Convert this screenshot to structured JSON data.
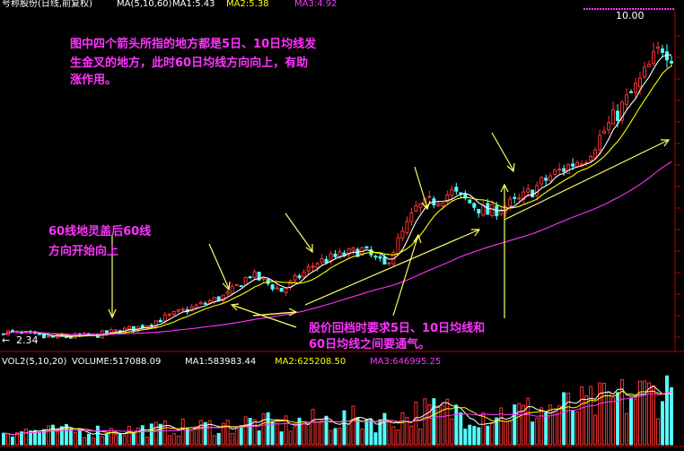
{
  "header": {
    "title": "号称股份(日线,前复权)",
    "ma_label": "MA(5,10,60)",
    "ma1_label": "MA1:5.43",
    "ma2_label": "MA2:5.38",
    "ma3_label": "MA3:4.92"
  },
  "colors": {
    "background": "#000000",
    "up_candle": "#ff3232",
    "down_candle": "#54ffff",
    "ma5": "#ffffff",
    "ma10": "#ffff00",
    "ma60": "#ff33ff",
    "annotation_text": "#ff33ff",
    "arrow": "#ffff66",
    "axis_line": "#b40000",
    "volume_info": "#ffffff"
  },
  "annotations": {
    "top_note_line1": "图中四个箭头所指的地方都是5日、10日均线发",
    "top_note_line2": "生金叉的地方，此时60日均线方向向上，有助",
    "top_note_line3": "涨作用。",
    "left_note_line1": "60线地灵盖后60线",
    "left_note_line2": "方向开始向上",
    "bottom_note_line1": "股价回档时要求5日、10日均线和",
    "bottom_note_line2": "60日均线之间要通气。"
  },
  "price_labels": {
    "high": "10.00",
    "low": "2.34"
  },
  "volume_header": {
    "name": "VOL2(5,10,20)",
    "volume": "VOLUME:517088.09",
    "ma1": "MA1:583983.44",
    "ma2": "MA2:625208.50",
    "ma3": "MA3:646995.25"
  },
  "chart_data": {
    "type": "candlestick",
    "price_axis_range": [
      2.2,
      10.4
    ],
    "bars": 150,
    "trend_points": [
      [
        0,
        2.6
      ],
      [
        10,
        2.45
      ],
      [
        20,
        2.5
      ],
      [
        30,
        2.7
      ],
      [
        40,
        3.1
      ],
      [
        50,
        3.5
      ],
      [
        55,
        4.0
      ],
      [
        62,
        3.6
      ],
      [
        70,
        4.3
      ],
      [
        80,
        4.6
      ],
      [
        85,
        4.2
      ],
      [
        92,
        5.6
      ],
      [
        100,
        6.0
      ],
      [
        108,
        5.5
      ],
      [
        115,
        5.8
      ],
      [
        122,
        6.4
      ],
      [
        130,
        6.9
      ],
      [
        136,
        7.8
      ],
      [
        142,
        8.7
      ],
      [
        147,
        9.6
      ],
      [
        150,
        9.3
      ]
    ],
    "series": [
      {
        "name": "MA1:5.43",
        "ma_window": 5
      },
      {
        "name": "MA2:5.38",
        "ma_window": 10
      },
      {
        "name": "MA3:4.92",
        "ma_window": 60
      }
    ],
    "volume_series": [
      {
        "name": "MA1:583983.44"
      },
      {
        "name": "MA2:625208.50"
      },
      {
        "name": "MA3:646995.25"
      }
    ]
  }
}
